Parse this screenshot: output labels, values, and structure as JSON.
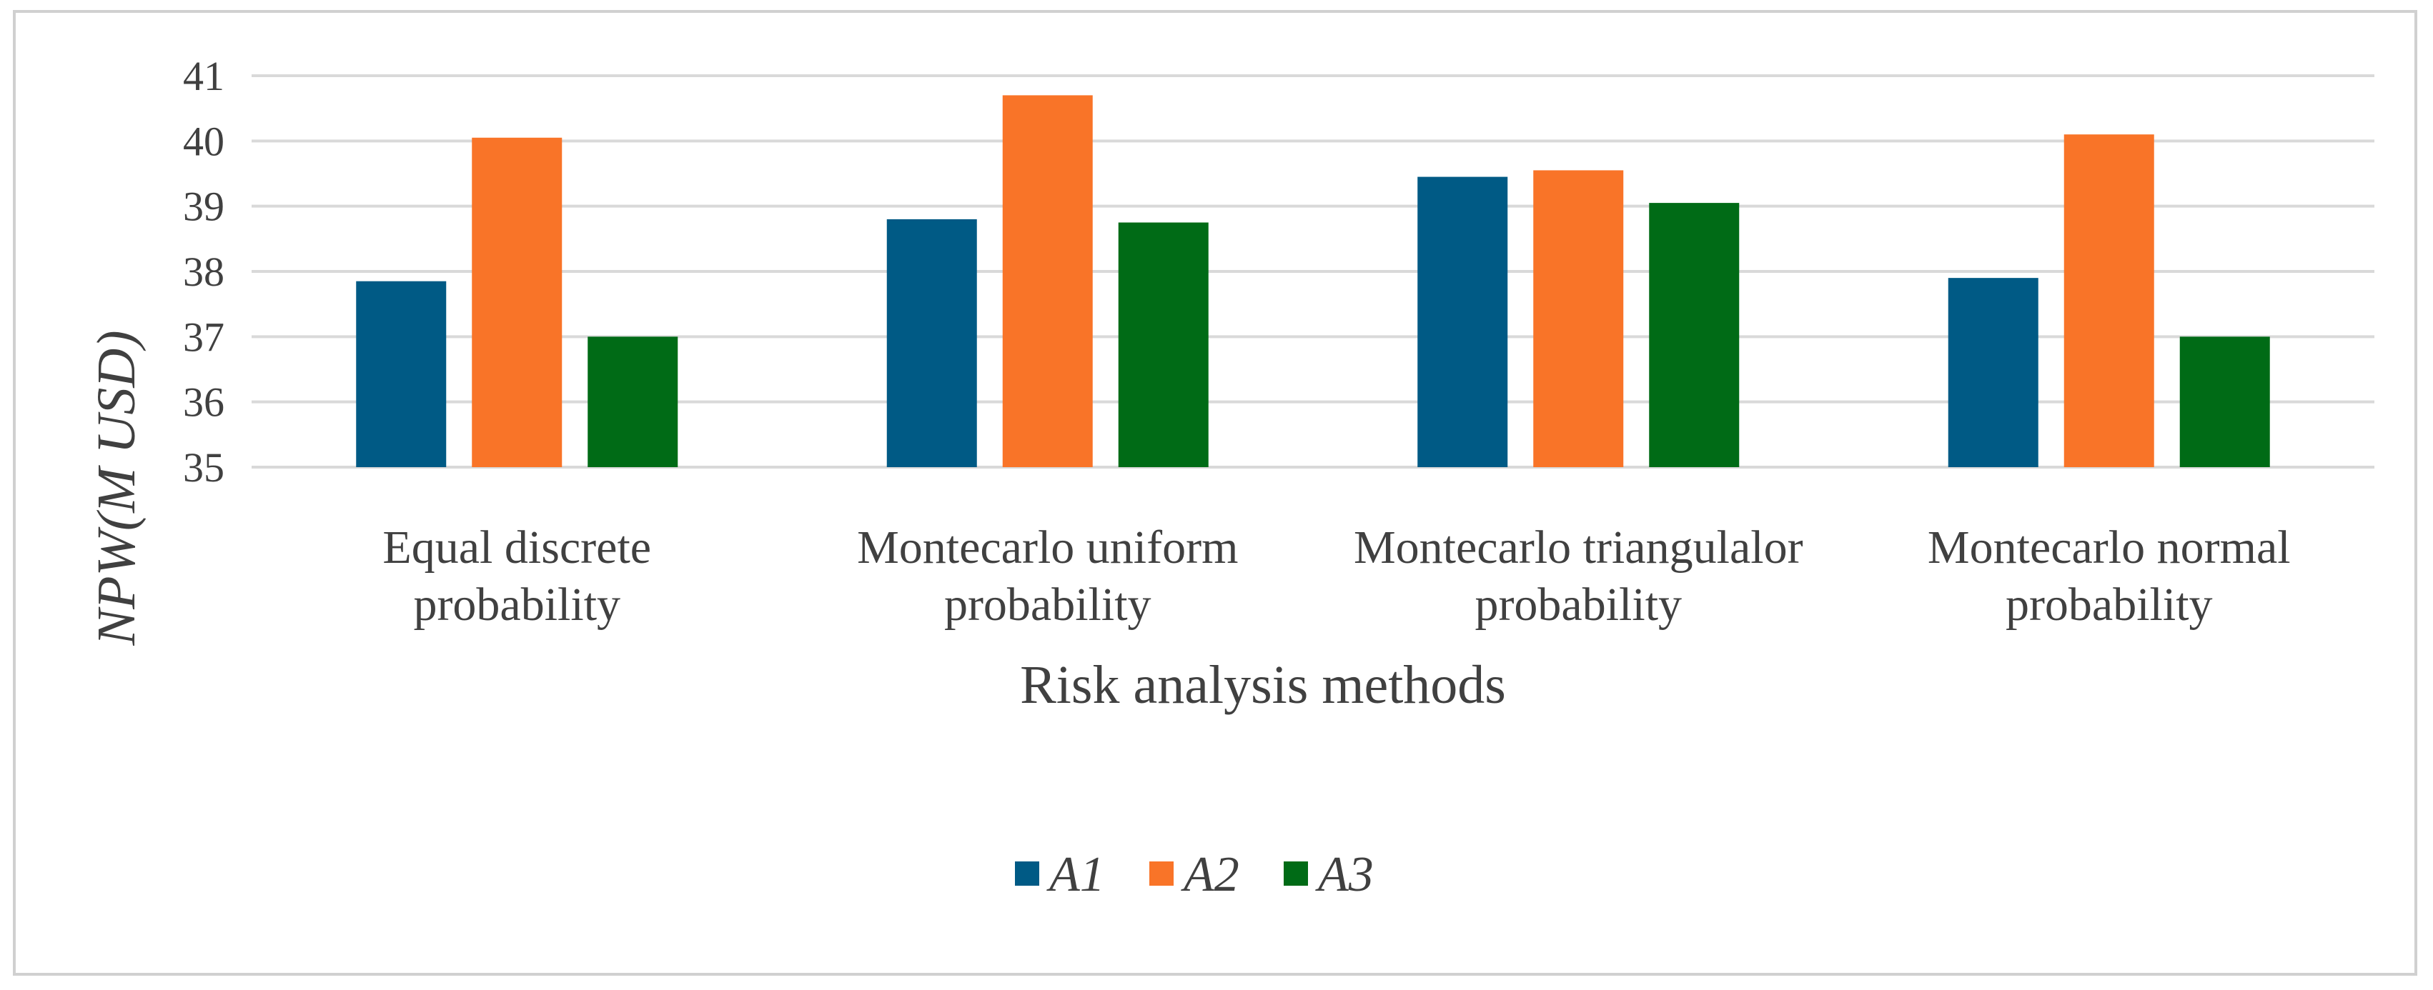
{
  "chart_data": {
    "type": "bar",
    "title": "",
    "categories": [
      [
        "Equal discrete",
        "probability"
      ],
      [
        "Montecarlo uniform",
        "probability"
      ],
      [
        "Montecarlo triangulalor",
        "probability"
      ],
      [
        "Montecarlo normal",
        "probability"
      ]
    ],
    "series": [
      {
        "name": "A1",
        "color": "#005a85",
        "values": [
          37.85,
          38.8,
          39.45,
          37.9
        ]
      },
      {
        "name": "A2",
        "color": "#f97428",
        "values": [
          40.05,
          40.7,
          39.55,
          40.1
        ]
      },
      {
        "name": "A3",
        "color": "#006b16",
        "values": [
          37.0,
          38.75,
          39.05,
          37.0
        ]
      }
    ],
    "xlabel": "Risk analysis methods",
    "ylabel": "NPW(M USD)",
    "ylim": [
      35,
      41
    ],
    "yticks": [
      35,
      36,
      37,
      38,
      39,
      40,
      41
    ],
    "grid": true,
    "legend": "bottom-center"
  }
}
